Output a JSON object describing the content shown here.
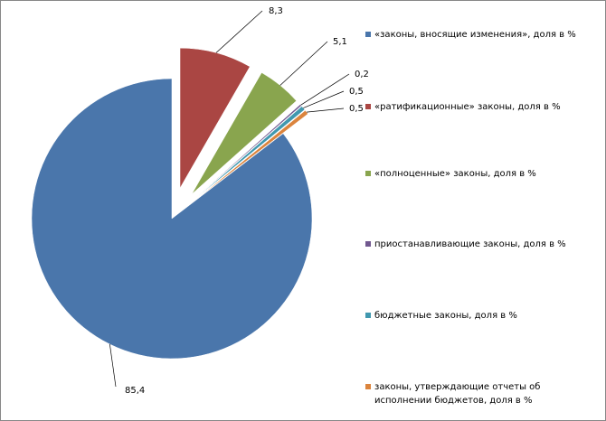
{
  "chart_data": {
    "type": "pie",
    "categories": [
      "«законы, вносящие изменения», доля в %",
      "«ратификационные» законы, доля в %",
      "«полноценные» законы, доля в %",
      "приостанавливающие законы, доля в %",
      "бюджетные законы, доля в %",
      "законы, утверждающие отчеты об исполнении бюджетов, доля в %"
    ],
    "values": [
      85.4,
      8.3,
      5.1,
      0.2,
      0.5,
      0.5
    ],
    "value_labels": [
      "85,4",
      "8,3",
      "5,1",
      "0,2",
      "0,5",
      "0,5"
    ],
    "colors": [
      "#4a76ab",
      "#aa4643",
      "#89a54e",
      "#71588f",
      "#4198af",
      "#db843d"
    ]
  }
}
